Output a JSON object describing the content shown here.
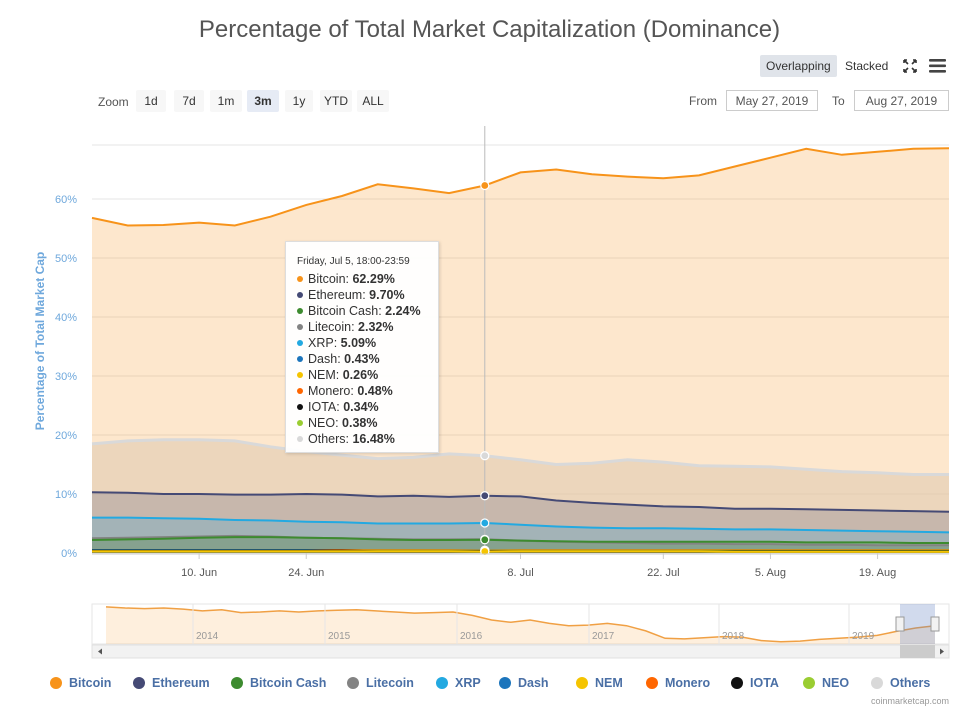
{
  "title": "Percentage of Total Market Capitalization (Dominance)",
  "modes": {
    "overlapping": "Overlapping",
    "stacked": "Stacked"
  },
  "icons": {
    "fullscreen": "fullscreen-icon",
    "menu": "hamburger-menu-icon"
  },
  "zoom": {
    "label": "Zoom",
    "buttons": [
      "1d",
      "7d",
      "1m",
      "3m",
      "1y",
      "YTD",
      "ALL"
    ],
    "active": "3m"
  },
  "range": {
    "from_label": "From",
    "from": "May 27, 2019",
    "to_label": "To",
    "to": "Aug 27, 2019"
  },
  "tooltip": {
    "header": "Friday, Jul 5, 18:00-23:59",
    "rows": [
      {
        "name": "Bitcoin",
        "value": "62.29%",
        "color": "#f7931a"
      },
      {
        "name": "Ethereum",
        "value": "9.70%",
        "color": "#454a75"
      },
      {
        "name": "Bitcoin Cash",
        "value": "2.24%",
        "color": "#3d8b2f"
      },
      {
        "name": "Litecoin",
        "value": "2.32%",
        "color": "#838383"
      },
      {
        "name": "XRP",
        "value": "5.09%",
        "color": "#23a9e1"
      },
      {
        "name": "Dash",
        "value": "0.43%",
        "color": "#1c75bc"
      },
      {
        "name": "NEM",
        "value": "0.26%",
        "color": "#f5c400"
      },
      {
        "name": "Monero",
        "value": "0.48%",
        "color": "#ff6600"
      },
      {
        "name": "IOTA",
        "value": "0.34%",
        "color": "#111111"
      },
      {
        "name": "NEO",
        "value": "0.38%",
        "color": "#9acd32"
      },
      {
        "name": "Others",
        "value": "16.48%",
        "color": "#d9d9d9"
      }
    ]
  },
  "credits": "coinmarketcap.com",
  "chart_data": {
    "type": "area",
    "ylabel": "Percentage of Total Market Cap",
    "ylim": [
      0,
      70
    ],
    "yticks": [
      "0%",
      "10%",
      "20%",
      "30%",
      "40%",
      "50%",
      "60%"
    ],
    "xticks": [
      "10. Jun",
      "24. Jun",
      "8. Jul",
      "22. Jul",
      "5. Aug",
      "19. Aug"
    ],
    "x": [
      "May 27",
      "Jun 1",
      "Jun 6",
      "Jun 10",
      "Jun 15",
      "Jun 20",
      "Jun 24",
      "Jun 26",
      "Jun 28",
      "Jul 1",
      "Jul 3",
      "Jul 5",
      "Jul 8",
      "Jul 12",
      "Jul 16",
      "Jul 20",
      "Jul 24",
      "Jul 28",
      "Aug 1",
      "Aug 5",
      "Aug 9",
      "Aug 13",
      "Aug 17",
      "Aug 21",
      "Aug 27"
    ],
    "series": [
      {
        "name": "Others",
        "color": "#d9d9d9",
        "values": [
          18.5,
          19.0,
          19.2,
          19.2,
          19.0,
          18.0,
          17.2,
          16.6,
          16.0,
          16.2,
          16.8,
          16.48,
          15.8,
          15.0,
          15.2,
          15.8,
          15.4,
          14.8,
          14.7,
          14.6,
          14.2,
          13.8,
          13.6,
          13.3,
          13.3
        ]
      },
      {
        "name": "Bitcoin",
        "color": "#f7931a",
        "values": [
          56.8,
          55.5,
          55.6,
          56.0,
          55.5,
          57.0,
          59.0,
          60.5,
          62.5,
          61.8,
          61.0,
          62.29,
          64.5,
          65.0,
          64.2,
          63.8,
          63.5,
          64.0,
          65.5,
          67.0,
          68.5,
          67.5,
          68.0,
          68.5,
          68.6
        ]
      },
      {
        "name": "Ethereum",
        "color": "#454a75",
        "values": [
          10.3,
          10.2,
          10.0,
          10.0,
          9.9,
          9.9,
          10.0,
          9.9,
          9.6,
          9.7,
          9.5,
          9.7,
          9.6,
          8.9,
          8.5,
          8.2,
          7.9,
          7.8,
          7.5,
          7.5,
          7.4,
          7.3,
          7.2,
          7.1,
          7.0
        ]
      },
      {
        "name": "XRP",
        "color": "#23a9e1",
        "values": [
          6.0,
          6.0,
          5.9,
          5.8,
          5.6,
          5.5,
          5.3,
          5.2,
          5.0,
          5.0,
          5.0,
          5.09,
          4.8,
          4.5,
          4.3,
          4.2,
          4.2,
          4.1,
          4.0,
          4.0,
          3.9,
          3.8,
          3.7,
          3.6,
          3.5
        ]
      },
      {
        "name": "Litecoin",
        "color": "#838383",
        "values": [
          2.5,
          2.6,
          2.7,
          2.8,
          2.9,
          2.8,
          2.6,
          2.5,
          2.4,
          2.3,
          2.3,
          2.32,
          2.1,
          1.9,
          1.8,
          1.7,
          1.6,
          1.6,
          1.5,
          1.5,
          1.4,
          1.4,
          1.3,
          1.3,
          1.3
        ]
      },
      {
        "name": "Bitcoin Cash",
        "color": "#3d8b2f",
        "values": [
          2.2,
          2.3,
          2.4,
          2.6,
          2.7,
          2.7,
          2.6,
          2.5,
          2.3,
          2.2,
          2.2,
          2.24,
          2.1,
          2.0,
          1.9,
          1.9,
          1.9,
          1.9,
          1.9,
          1.9,
          1.8,
          1.8,
          1.8,
          1.7,
          1.7
        ]
      },
      {
        "name": "Monero",
        "color": "#ff6600",
        "values": [
          0.5,
          0.5,
          0.5,
          0.5,
          0.5,
          0.5,
          0.5,
          0.5,
          0.5,
          0.5,
          0.5,
          0.48,
          0.5,
          0.5,
          0.5,
          0.5,
          0.5,
          0.5,
          0.5,
          0.5,
          0.5,
          0.5,
          0.5,
          0.5,
          0.5
        ]
      },
      {
        "name": "Dash",
        "color": "#1c75bc",
        "values": [
          0.5,
          0.5,
          0.5,
          0.5,
          0.5,
          0.5,
          0.5,
          0.4,
          0.4,
          0.4,
          0.4,
          0.43,
          0.4,
          0.4,
          0.4,
          0.4,
          0.4,
          0.4,
          0.4,
          0.4,
          0.4,
          0.4,
          0.4,
          0.4,
          0.4
        ]
      },
      {
        "name": "NEO",
        "color": "#9acd32",
        "values": [
          0.4,
          0.4,
          0.4,
          0.4,
          0.4,
          0.4,
          0.4,
          0.4,
          0.4,
          0.4,
          0.4,
          0.38,
          0.4,
          0.4,
          0.4,
          0.4,
          0.4,
          0.4,
          0.4,
          0.4,
          0.4,
          0.4,
          0.4,
          0.4,
          0.4
        ]
      },
      {
        "name": "IOTA",
        "color": "#111111",
        "values": [
          0.4,
          0.4,
          0.4,
          0.4,
          0.4,
          0.4,
          0.4,
          0.4,
          0.3,
          0.3,
          0.3,
          0.34,
          0.3,
          0.3,
          0.3,
          0.3,
          0.3,
          0.3,
          0.3,
          0.3,
          0.3,
          0.3,
          0.3,
          0.3,
          0.3
        ]
      },
      {
        "name": "NEM",
        "color": "#f5c400",
        "values": [
          0.3,
          0.3,
          0.3,
          0.3,
          0.3,
          0.3,
          0.3,
          0.3,
          0.3,
          0.3,
          0.3,
          0.26,
          0.3,
          0.3,
          0.3,
          0.3,
          0.3,
          0.3,
          0.2,
          0.2,
          0.2,
          0.2,
          0.2,
          0.2,
          0.2
        ]
      }
    ],
    "crosshair_date": "Jul 5",
    "navigator": {
      "xticks": [
        "2014",
        "2015",
        "2016",
        "2017",
        "2018",
        "2019"
      ],
      "values": [
        95,
        93,
        92,
        93,
        91,
        88,
        90,
        85,
        86,
        88,
        86,
        88,
        89,
        90,
        88,
        86,
        84,
        85,
        86,
        80,
        72,
        68,
        72,
        66,
        62,
        63,
        66,
        62,
        53,
        40,
        39,
        41,
        43,
        42,
        36,
        34,
        35,
        38,
        40,
        42,
        45,
        52,
        58,
        62
      ],
      "ylim": [
        30,
        100
      ]
    },
    "legend": [
      "Bitcoin",
      "Ethereum",
      "Bitcoin Cash",
      "Litecoin",
      "XRP",
      "Dash",
      "NEM",
      "Monero",
      "IOTA",
      "NEO",
      "Others"
    ]
  }
}
